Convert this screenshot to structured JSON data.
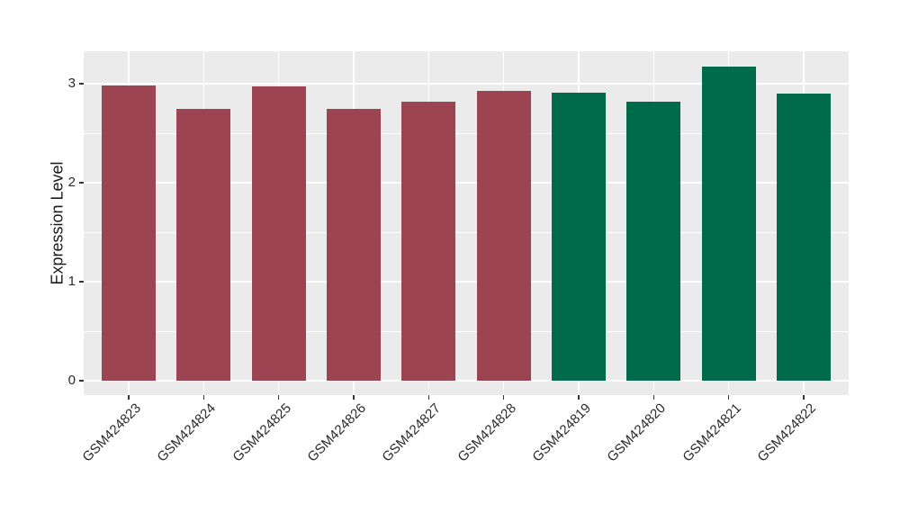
{
  "chart_data": {
    "type": "bar",
    "ylabel": "Expression Level",
    "xlabel": "",
    "categories": [
      "GSM424823",
      "GSM424824",
      "GSM424825",
      "GSM424826",
      "GSM424827",
      "GSM424828",
      "GSM424819",
      "GSM424820",
      "GSM424821",
      "GSM424822"
    ],
    "values": [
      2.98,
      2.75,
      2.97,
      2.75,
      2.82,
      2.93,
      2.91,
      2.82,
      3.17,
      2.9
    ],
    "bar_colors": [
      "#9C4452",
      "#9C4452",
      "#9C4452",
      "#9C4452",
      "#9C4452",
      "#9C4452",
      "#006B4A",
      "#006B4A",
      "#006B4A",
      "#006B4A"
    ],
    "group_colors": {
      "left_group_red": "#9C4452",
      "right_group_green": "#006B4A"
    },
    "yticks": [
      0,
      1,
      2,
      3
    ],
    "y_minor_ticks": [
      0.5,
      1.5,
      2.5
    ],
    "ylim": [
      0,
      3.33
    ],
    "x_label_rotation_deg": 45,
    "panel_background": "#EBEBEB",
    "gridline_color": "#FFFFFF",
    "tick_mark_color": "#333333",
    "text_color": "#2B2B2B",
    "grid": "on",
    "legend": "none"
  }
}
